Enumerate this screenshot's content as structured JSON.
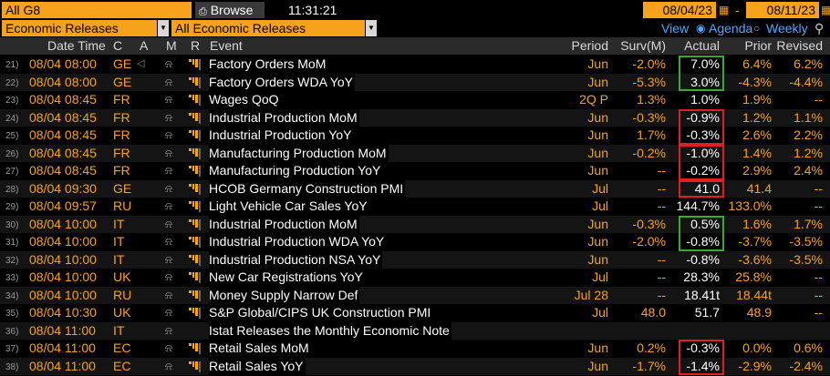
{
  "top": {
    "scope": "All G8",
    "browse_label": "Browse",
    "time": "11:31:21",
    "date_from": "08/04/23",
    "date_to": "08/11/23",
    "category": "Economic Releases",
    "subcategory": "All Economic Releases",
    "view_label": "View",
    "agenda_label": "Agenda",
    "weekly_label": "Weekly"
  },
  "columns": {
    "datetime": "Date Time",
    "c": "C",
    "a": "A",
    "m": "M",
    "r": "R",
    "event": "Event",
    "period": "Period",
    "surv": "Surv(M)",
    "actual": "Actual",
    "prior": "Prior",
    "revised": "Revised"
  },
  "rows": [
    {
      "n": "21)",
      "dt": "08/04 08:00",
      "c": "GE",
      "speaker": true,
      "bar": true,
      "event": "Factory Orders MoM",
      "period": "Jun",
      "surv": "-2.0%",
      "actual": "7.0%",
      "prior": "6.4%",
      "revised": "6.2%"
    },
    {
      "n": "22)",
      "dt": "08/04 08:00",
      "c": "GE",
      "speaker": false,
      "bar": true,
      "event": "Factory Orders WDA YoY",
      "period": "Jun",
      "surv": "-5.3%",
      "actual": "3.0%",
      "prior": "-4.3%",
      "revised": "-4.4%"
    },
    {
      "n": "23)",
      "dt": "08/04 08:45",
      "c": "FR",
      "speaker": false,
      "bar": true,
      "event": "Wages QoQ",
      "period": "2Q P",
      "surv": "1.3%",
      "actual": "1.0%",
      "prior": "1.9%",
      "revised": "--"
    },
    {
      "n": "24)",
      "dt": "08/04 08:45",
      "c": "FR",
      "speaker": false,
      "bar": true,
      "event": "Industrial Production MoM",
      "period": "Jun",
      "surv": "-0.3%",
      "actual": "-0.9%",
      "prior": "1.2%",
      "revised": "1.1%"
    },
    {
      "n": "25)",
      "dt": "08/04 08:45",
      "c": "FR",
      "speaker": false,
      "bar": true,
      "event": "Industrial Production YoY",
      "period": "Jun",
      "surv": "1.7%",
      "actual": "-0.3%",
      "prior": "2.6%",
      "revised": "2.2%"
    },
    {
      "n": "26)",
      "dt": "08/04 08:45",
      "c": "FR",
      "speaker": false,
      "bar": true,
      "event": "Manufacturing Production MoM",
      "period": "Jun",
      "surv": "-0.2%",
      "actual": "-1.0%",
      "prior": "1.4%",
      "revised": "1.2%"
    },
    {
      "n": "27)",
      "dt": "08/04 08:45",
      "c": "FR",
      "speaker": false,
      "bar": true,
      "event": "Manufacturing Production YoY",
      "period": "Jun",
      "surv": "--",
      "actual": "-0.2%",
      "prior": "2.9%",
      "revised": "2.4%"
    },
    {
      "n": "28)",
      "dt": "08/04 09:30",
      "c": "GE",
      "speaker": false,
      "bar": true,
      "event": "HCOB Germany Construction PMI",
      "period": "Jul",
      "surv": "--",
      "actual": "41.0",
      "prior": "41.4",
      "revised": "--"
    },
    {
      "n": "29)",
      "dt": "08/04 09:57",
      "c": "RU",
      "speaker": false,
      "bar": true,
      "event": "Light Vehicle Car Sales YoY",
      "period": "Jul",
      "surv": "--",
      "actual": "144.7%",
      "prior": "133.0%",
      "revised": "--"
    },
    {
      "n": "30)",
      "dt": "08/04 10:00",
      "c": "IT",
      "speaker": false,
      "bar": true,
      "event": "Industrial Production MoM",
      "period": "Jun",
      "surv": "-0.3%",
      "actual": "0.5%",
      "prior": "1.6%",
      "revised": "1.7%"
    },
    {
      "n": "31)",
      "dt": "08/04 10:00",
      "c": "IT",
      "speaker": false,
      "bar": true,
      "event": "Industrial Production WDA YoY",
      "period": "Jun",
      "surv": "-2.0%",
      "actual": "-0.8%",
      "prior": "-3.7%",
      "revised": "-3.5%"
    },
    {
      "n": "32)",
      "dt": "08/04 10:00",
      "c": "IT",
      "speaker": false,
      "bar": true,
      "event": "Industrial Production NSA YoY",
      "period": "Jun",
      "surv": "--",
      "actual": "-0.8%",
      "prior": "-3.6%",
      "revised": "-3.5%"
    },
    {
      "n": "33)",
      "dt": "08/04 10:00",
      "c": "UK",
      "speaker": false,
      "bar": true,
      "event": "New Car Registrations YoY",
      "period": "Jul",
      "surv": "--",
      "actual": "28.3%",
      "prior": "25.8%",
      "revised": "--"
    },
    {
      "n": "34)",
      "dt": "08/04 10:00",
      "c": "RU",
      "speaker": false,
      "bar": true,
      "event": "Money Supply Narrow Def",
      "period": "Jul 28",
      "surv": "--",
      "actual": "18.41t",
      "prior": "18.44t",
      "revised": "--"
    },
    {
      "n": "35)",
      "dt": "08/04 10:30",
      "c": "UK",
      "speaker": false,
      "bar": true,
      "event": "S&P Global/CIPS UK Construction PMI",
      "period": "Jul",
      "surv": "48.0",
      "actual": "51.7",
      "prior": "48.9",
      "revised": "--"
    },
    {
      "n": "36)",
      "dt": "08/04 11:00",
      "c": "IT",
      "speaker": false,
      "bar": false,
      "event": "Istat Releases the Monthly Economic Note",
      "period": "",
      "surv": "",
      "actual": "",
      "prior": "",
      "revised": ""
    },
    {
      "n": "37)",
      "dt": "08/04 11:00",
      "c": "EC",
      "speaker": false,
      "bar": true,
      "event": "Retail Sales MoM",
      "period": "Jun",
      "surv": "0.2%",
      "actual": "-0.3%",
      "prior": "0.0%",
      "revised": "0.6%"
    },
    {
      "n": "38)",
      "dt": "08/04 11:00",
      "c": "EC",
      "speaker": false,
      "bar": true,
      "event": "Retail Sales YoY",
      "period": "Jun",
      "surv": "-1.7%",
      "actual": "-1.4%",
      "prior": "-2.9%",
      "revised": "-2.4%"
    }
  ],
  "highlights": [
    {
      "rows": [
        0,
        1
      ],
      "color": "#3aaa35"
    },
    {
      "rows": [
        3,
        4
      ],
      "color": "#e02020"
    },
    {
      "rows": [
        5,
        6
      ],
      "color": "#e02020"
    },
    {
      "rows": [
        7,
        7
      ],
      "color": "#e02020"
    },
    {
      "rows": [
        9,
        10
      ],
      "color": "#3aaa35"
    },
    {
      "rows": [
        16,
        17
      ],
      "color": "#e02020"
    }
  ],
  "colors": {
    "accent": "#f7a21b",
    "green": "#3aaa35",
    "red": "#e02020"
  }
}
